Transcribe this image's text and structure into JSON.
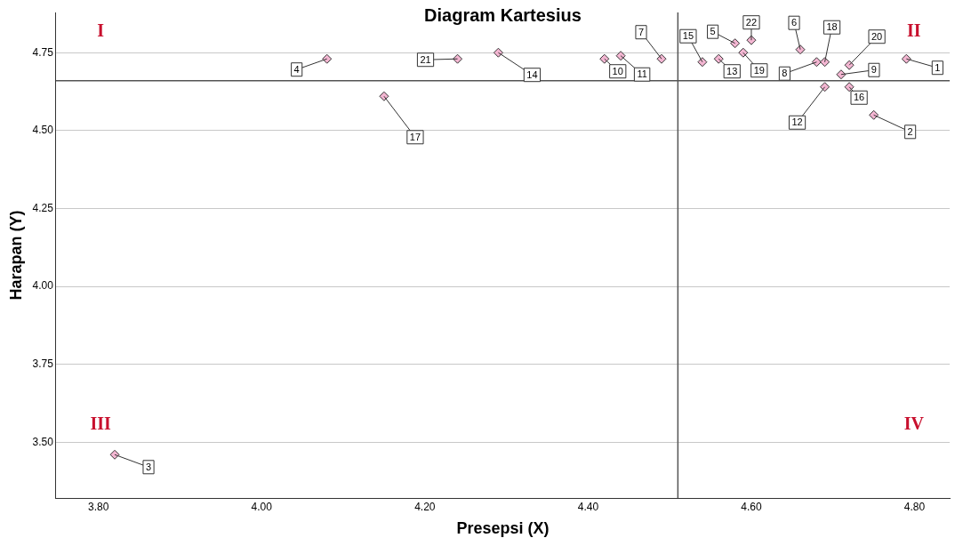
{
  "chart_data": {
    "type": "scatter",
    "title": "Diagram Kartesius",
    "xlabel": "Presepsi (X)",
    "ylabel": "Harapan (Y)",
    "x": [
      4.79,
      4.75,
      3.82,
      4.08,
      4.58,
      4.66,
      4.49,
      4.68,
      4.71,
      4.42,
      4.44,
      4.69,
      4.56,
      4.29,
      4.54,
      4.72,
      4.15,
      4.69,
      4.59,
      4.72,
      4.24,
      4.6
    ],
    "series": [
      {
        "color": "#f4b6d2",
        "values": [
          4.73,
          4.55,
          3.46,
          4.73,
          4.78,
          4.76,
          4.73,
          4.72,
          4.68,
          4.73,
          4.74,
          4.64,
          4.73,
          4.75,
          4.72,
          4.64,
          4.61,
          4.72,
          4.75,
          4.71,
          4.73,
          4.79
        ]
      }
    ],
    "marker": "diamond",
    "grid": "y",
    "legend": false,
    "xlim": [
      3.748,
      4.843
    ],
    "xticks": [
      {
        "value": 3.8,
        "label": "3.80"
      },
      {
        "value": 4.0,
        "label": "4.00"
      },
      {
        "value": 4.2,
        "label": "4.20"
      },
      {
        "value": 4.4,
        "label": "4.40"
      },
      {
        "value": 4.6,
        "label": "4.60"
      },
      {
        "value": 4.8,
        "label": "4.80"
      }
    ],
    "ylim": [
      3.321,
      4.879
    ],
    "yticks": [
      {
        "value": 3.5,
        "label": "3.50"
      },
      {
        "value": 3.75,
        "label": "3.75"
      },
      {
        "value": 4.0,
        "label": "4.00"
      },
      {
        "value": 4.25,
        "label": "4.25"
      },
      {
        "value": 4.5,
        "label": "4.50"
      },
      {
        "value": 4.75,
        "label": "4.75"
      }
    ],
    "ref_lines": [
      {
        "axis": "x",
        "value": 4.51,
        "color": "#555555"
      },
      {
        "axis": "y",
        "value": 4.66,
        "color": "#555555"
      }
    ],
    "annotations": [
      {
        "text": "1",
        "x": 4.79,
        "y": 4.73
      },
      {
        "text": "2",
        "x": 4.75,
        "y": 4.55
      },
      {
        "text": "3",
        "x": 3.82,
        "y": 3.46
      },
      {
        "text": "4",
        "x": 4.08,
        "y": 4.73
      },
      {
        "text": "5",
        "x": 4.58,
        "y": 4.78
      },
      {
        "text": "6",
        "x": 4.66,
        "y": 4.76
      },
      {
        "text": "7",
        "x": 4.49,
        "y": 4.73
      },
      {
        "text": "8",
        "x": 4.68,
        "y": 4.72
      },
      {
        "text": "9",
        "x": 4.71,
        "y": 4.68
      },
      {
        "text": "10",
        "x": 4.42,
        "y": 4.73
      },
      {
        "text": "11",
        "x": 4.44,
        "y": 4.74
      },
      {
        "text": "12",
        "x": 4.69,
        "y": 4.64
      },
      {
        "text": "13",
        "x": 4.56,
        "y": 4.73
      },
      {
        "text": "14",
        "x": 4.29,
        "y": 4.75
      },
      {
        "text": "15",
        "x": 4.54,
        "y": 4.72
      },
      {
        "text": "16",
        "x": 4.72,
        "y": 4.64
      },
      {
        "text": "17",
        "x": 4.15,
        "y": 4.61
      },
      {
        "text": "18",
        "x": 4.69,
        "y": 4.72
      },
      {
        "text": "19",
        "x": 4.59,
        "y": 4.75
      },
      {
        "text": "20",
        "x": 4.72,
        "y": 4.71
      },
      {
        "text": "21",
        "x": 4.24,
        "y": 4.73
      },
      {
        "text": "22",
        "x": 4.6,
        "y": 4.79
      },
      "I",
      "II",
      "III",
      "IV"
    ]
  }
}
